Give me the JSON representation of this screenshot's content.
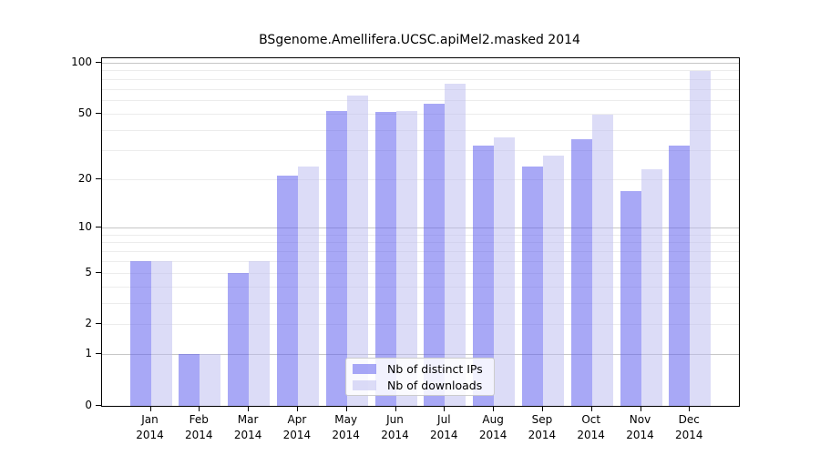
{
  "chart_data": {
    "type": "bar",
    "title": "BSgenome.Amellifera.UCSC.apiMel2.masked 2014",
    "categories": [
      "Jan",
      "Feb",
      "Mar",
      "Apr",
      "May",
      "Jun",
      "Jul",
      "Aug",
      "Sep",
      "Oct",
      "Nov",
      "Dec"
    ],
    "x_year_label": "2014",
    "series": [
      {
        "name": "Nb of distinct IPs",
        "color": "rgba(97,97,238,0.55)",
        "values": [
          6,
          1,
          5,
          21,
          52,
          51,
          57,
          32,
          24,
          35,
          17,
          32
        ]
      },
      {
        "name": "Nb of downloads",
        "color": "rgba(185,185,240,0.5)",
        "values": [
          6,
          1,
          6,
          24,
          64,
          52,
          75,
          36,
          28,
          49,
          23,
          89
        ]
      }
    ],
    "y_axis": {
      "scale": "log10(value+1)",
      "tick_values": [
        100,
        50,
        20,
        10,
        5,
        2,
        1,
        0
      ],
      "tick_labels": [
        "100",
        "50",
        "20",
        "10",
        "5",
        "2",
        "1",
        "0"
      ],
      "minor_gridline_values": [
        2,
        3,
        4,
        5,
        6,
        7,
        8,
        9,
        20,
        30,
        40,
        50,
        60,
        70,
        80,
        90
      ],
      "major_gridline_values": [
        1,
        10,
        100
      ],
      "ylim": [
        0,
        100
      ]
    },
    "legend": {
      "position": "bottom-center",
      "entries": [
        "Nb of distinct IPs",
        "Nb of downloads"
      ]
    },
    "grid": "horizontal-on"
  }
}
